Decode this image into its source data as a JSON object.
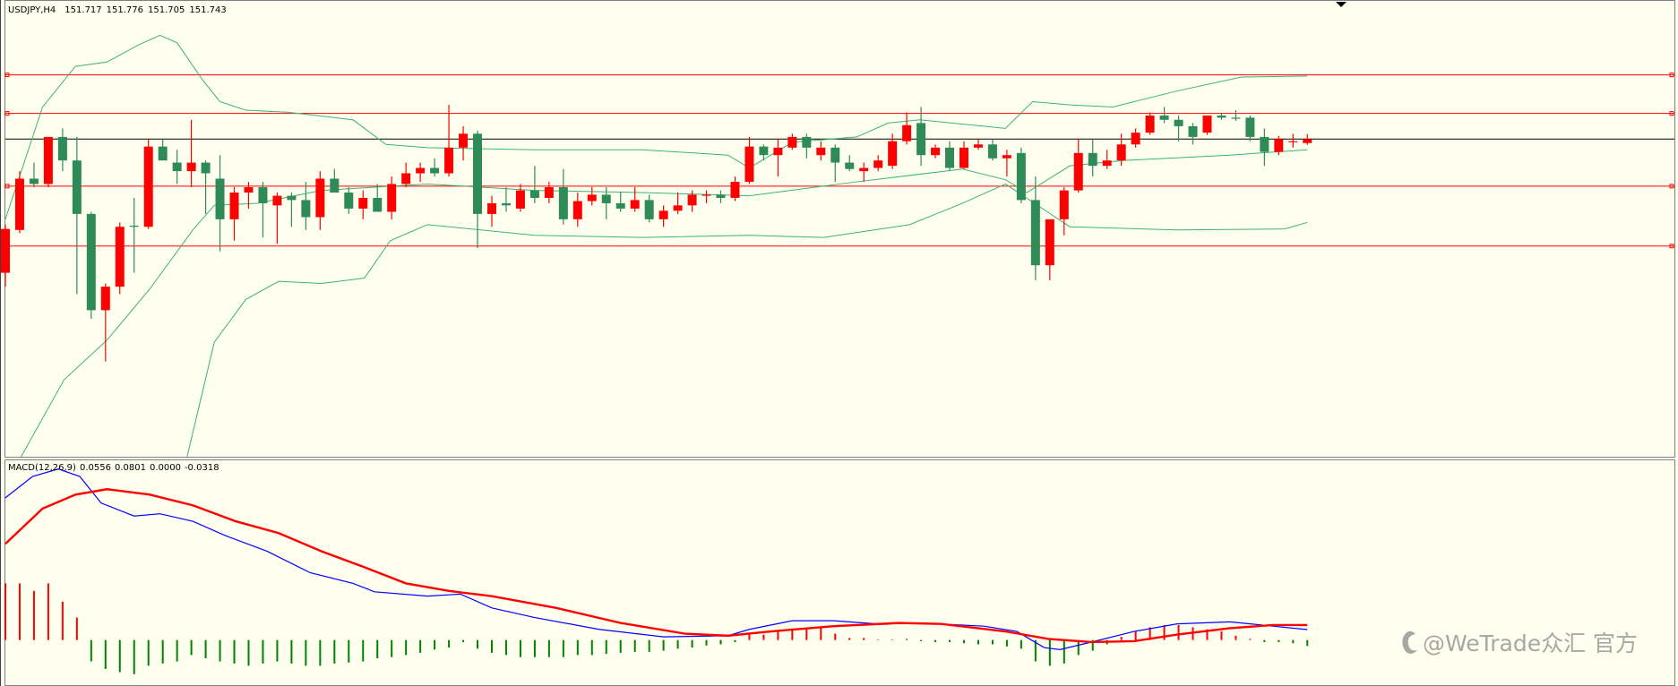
{
  "chart_data": [
    {
      "type": "candlestick",
      "title": "USDJPY,H4",
      "categories": [
        null,
        null,
        null,
        null,
        null,
        null,
        null,
        null,
        null,
        null,
        null,
        null,
        null,
        null,
        null,
        null,
        null,
        null,
        null,
        null,
        null,
        null,
        null,
        null,
        null,
        null,
        null,
        null,
        null,
        null,
        null,
        null,
        null,
        null,
        null,
        null,
        null,
        null,
        null,
        null,
        null,
        null,
        null,
        null,
        null,
        null,
        null,
        null,
        null,
        null,
        null,
        null,
        null,
        null,
        null,
        null,
        null,
        null,
        null,
        null,
        null,
        null,
        null,
        null,
        null,
        null,
        null,
        null,
        null,
        null,
        null,
        null,
        null,
        null,
        null,
        null,
        null,
        null,
        null,
        null,
        null,
        null,
        null,
        null,
        null,
        null,
        null,
        null,
        null,
        null,
        null,
        null
      ],
      "open": [
        150.868,
        151.148,
        151.484,
        151.449,
        151.757,
        151.603,
        151.253,
        150.623,
        150.777,
        151.176,
        151.169,
        151.694,
        151.589,
        151.533,
        151.589,
        151.484,
        151.218,
        151.393,
        151.428,
        151.309,
        151.372,
        151.344,
        151.232,
        151.484,
        151.393,
        151.288,
        151.358,
        151.267,
        151.449,
        151.519,
        151.554,
        151.519,
        151.687,
        151.778,
        151.253,
        151.323,
        151.288,
        151.407,
        151.358,
        151.428,
        151.218,
        151.337,
        151.379,
        151.323,
        151.288,
        151.344,
        151.218,
        151.274,
        151.309,
        151.372,
        151.379,
        151.358,
        151.463,
        151.694,
        151.638,
        151.687,
        151.757,
        151.638,
        151.687,
        151.589,
        151.533,
        151.554,
        151.568,
        151.729,
        151.848,
        151.638,
        151.687,
        151.554,
        151.687,
        151.708,
        151.617,
        151.652,
        151.344,
        150.917,
        151.218,
        151.407,
        151.652,
        151.568,
        151.603,
        151.708,
        151.785,
        151.897,
        151.869,
        151.827,
        151.785,
        151.897,
        151.883,
        151.883,
        151.757,
        151.659,
        151.722,
        151.717
      ],
      "high": [
        151.183,
        151.533,
        151.589,
        151.757,
        151.813,
        151.757,
        151.267,
        150.798,
        151.197,
        151.358,
        151.743,
        151.743,
        151.673,
        151.869,
        151.603,
        151.638,
        151.428,
        151.463,
        151.463,
        151.393,
        151.393,
        151.463,
        151.533,
        151.547,
        151.428,
        151.407,
        151.449,
        151.498,
        151.589,
        151.589,
        151.617,
        151.967,
        151.827,
        151.799,
        151.372,
        151.428,
        151.449,
        151.568,
        151.463,
        151.547,
        151.393,
        151.428,
        151.428,
        151.393,
        151.428,
        151.379,
        151.309,
        151.393,
        151.407,
        151.407,
        151.407,
        151.498,
        151.757,
        151.708,
        151.743,
        151.778,
        151.778,
        151.729,
        151.708,
        151.638,
        151.589,
        151.638,
        151.778,
        151.918,
        151.953,
        151.708,
        151.729,
        151.729,
        151.743,
        151.743,
        151.673,
        151.687,
        151.498,
        151.218,
        151.428,
        151.743,
        151.743,
        151.673,
        151.778,
        151.813,
        151.918,
        151.953,
        151.897,
        151.848,
        151.897,
        151.911,
        151.932,
        151.897,
        151.813,
        151.764,
        151.778,
        151.776
      ],
      "low": [
        150.777,
        151.127,
        151.428,
        151.428,
        151.533,
        150.728,
        150.567,
        150.287,
        150.728,
        150.868,
        151.155,
        151.603,
        151.449,
        151.428,
        151.253,
        151.008,
        151.078,
        151.288,
        151.099,
        151.057,
        151.169,
        151.148,
        151.148,
        151.393,
        151.253,
        151.218,
        151.267,
        151.218,
        151.428,
        151.463,
        151.498,
        151.498,
        151.603,
        151.029,
        151.169,
        151.267,
        151.267,
        151.323,
        151.323,
        151.183,
        151.169,
        151.309,
        151.218,
        151.267,
        151.267,
        151.197,
        151.169,
        151.253,
        151.267,
        151.323,
        151.323,
        151.337,
        151.449,
        151.603,
        151.498,
        151.673,
        151.617,
        151.603,
        151.463,
        151.533,
        151.463,
        151.533,
        151.547,
        151.708,
        151.568,
        151.617,
        151.533,
        151.547,
        151.673,
        151.603,
        151.498,
        151.323,
        150.819,
        150.819,
        151.113,
        151.393,
        151.498,
        151.547,
        151.568,
        151.687,
        151.771,
        151.848,
        151.729,
        151.708,
        151.771,
        151.869,
        151.862,
        151.729,
        151.568,
        151.638,
        151.687,
        151.705
      ],
      "close": [
        151.155,
        151.484,
        151.449,
        151.757,
        151.603,
        151.253,
        150.623,
        150.777,
        151.169,
        151.169,
        151.694,
        151.603,
        151.533,
        151.589,
        151.519,
        151.218,
        151.393,
        151.428,
        151.323,
        151.372,
        151.344,
        151.232,
        151.484,
        151.393,
        151.288,
        151.358,
        151.267,
        151.449,
        151.519,
        151.554,
        151.519,
        151.687,
        151.778,
        151.253,
        151.323,
        151.309,
        151.407,
        151.358,
        151.428,
        151.218,
        151.337,
        151.379,
        151.323,
        151.288,
        151.344,
        151.218,
        151.274,
        151.309,
        151.379,
        151.379,
        151.358,
        151.463,
        151.694,
        151.638,
        151.687,
        151.757,
        151.687,
        151.687,
        151.589,
        151.547,
        151.554,
        151.603,
        151.729,
        151.834,
        151.638,
        151.687,
        151.554,
        151.687,
        151.708,
        151.617,
        151.638,
        151.344,
        150.917,
        151.218,
        151.407,
        151.652,
        151.568,
        151.603,
        151.708,
        151.785,
        151.897,
        151.869,
        151.827,
        151.757,
        151.897,
        151.883,
        151.883,
        151.757,
        151.659,
        151.743,
        151.729,
        151.743
      ],
      "up_color": "#ff0000",
      "down_color": "#2e8b57",
      "ylim": [
        149.664,
        152.618
      ],
      "levels": [
        152.163,
        151.911,
        151.435,
        151.043
      ],
      "level_color": "#ff0000",
      "bid_line_color": "#000000",
      "bands": [
        {
          "color": "#3cb371",
          "x": [
            0,
            2.6,
            4.9,
            7.1,
            9.3,
            10.8,
            12.0,
            13.8,
            15.0,
            16.8,
            19.8,
            24.3,
            26.6,
            29.5,
            37.0,
            44.5,
            50.5,
            52.0,
            55.0,
            59.5,
            61.7,
            63.9,
            69.9,
            71.8,
            74.4,
            77.4,
            81.9,
            86.4,
            91.0
          ],
          "values": [
            151.218,
            151.953,
            152.219,
            152.247,
            152.359,
            152.422,
            152.373,
            152.128,
            151.988,
            151.932,
            151.918,
            151.869,
            151.708,
            151.687,
            151.673,
            151.673,
            151.638,
            151.554,
            151.722,
            151.757,
            151.848,
            151.869,
            151.813,
            151.988,
            151.967,
            151.953,
            152.058,
            152.149,
            152.156
          ]
        },
        {
          "color": "#3cb371",
          "x": [
            1.1,
            4.1,
            7.1,
            10.1,
            13.1,
            14.6,
            17.6,
            22.1,
            29.5,
            37.0,
            44.5,
            52.0,
            59.5,
            66.9,
            69.9,
            71.4,
            74.4,
            78.2,
            85.6,
            91.0
          ],
          "values": [
            149.664,
            150.168,
            150.427,
            150.763,
            151.148,
            151.309,
            151.323,
            151.407,
            151.449,
            151.407,
            151.393,
            151.372,
            151.463,
            151.547,
            151.477,
            151.393,
            151.568,
            151.603,
            151.638,
            151.673
          ]
        },
        {
          "color": "#3cb371",
          "x": [
            12.7,
            14.6,
            16.8,
            19.1,
            22.1,
            25.1,
            26.9,
            29.5,
            37.0,
            44.5,
            52.0,
            57.2,
            63.2,
            66.9,
            69.9,
            74.4,
            81.9,
            89.4,
            91.0
          ],
          "values": [
            149.664,
            150.413,
            150.693,
            150.812,
            150.798,
            150.833,
            151.078,
            151.183,
            151.113,
            151.099,
            151.113,
            151.099,
            151.183,
            151.323,
            151.449,
            151.169,
            151.148,
            151.155,
            151.197
          ]
        }
      ]
    },
    {
      "type": "macd",
      "title": "MACD(12,26,9)",
      "ylim": [
        -0.245,
        0.958
      ],
      "series": [
        {
          "color": "#0000ff",
          "x": [
            0,
            1.9,
            3.7,
            5.2,
            6.7,
            9.0,
            10.8,
            13.1,
            15.3,
            18.3,
            21.3,
            24.3,
            25.8,
            29.5,
            31.8,
            34.0,
            37.0,
            41.5,
            46.0,
            50.5,
            52.0,
            55.0,
            57.9,
            60.9,
            63.9,
            68.4,
            70.7,
            72.6,
            73.7,
            75.9,
            78.9,
            81.9,
            85.6,
            88.6,
            91.0
          ],
          "values": [
            0.758,
            0.872,
            0.912,
            0.872,
            0.73,
            0.661,
            0.673,
            0.633,
            0.559,
            0.473,
            0.359,
            0.302,
            0.257,
            0.234,
            0.245,
            0.171,
            0.12,
            0.057,
            0.017,
            0.023,
            0.057,
            0.103,
            0.103,
            0.086,
            0.091,
            0.074,
            0.046,
            -0.04,
            -0.051,
            -0.011,
            0.046,
            0.086,
            0.097,
            0.074,
            0.0556
          ]
        },
        {
          "color": "#ff0000",
          "x": [
            0,
            2.6,
            4.9,
            7.1,
            10.1,
            13.1,
            16.1,
            19.1,
            22.1,
            25.1,
            28.0,
            31.0,
            34.0,
            38.5,
            43.0,
            47.5,
            50.5,
            53.5,
            57.9,
            62.5,
            65.4,
            69.9,
            72.9,
            75.9,
            78.9,
            81.9,
            85.6,
            88.6,
            91.0
          ],
          "values": [
            0.513,
            0.701,
            0.775,
            0.804,
            0.775,
            0.718,
            0.633,
            0.57,
            0.473,
            0.388,
            0.302,
            0.262,
            0.234,
            0.171,
            0.091,
            0.034,
            0.023,
            0.046,
            0.074,
            0.091,
            0.086,
            0.046,
            0.006,
            -0.011,
            -0.006,
            0.029,
            0.063,
            0.08,
            0.0801
          ]
        }
      ],
      "header_buffer": {
        "value": 0,
        "label": "0.0000"
      },
      "histogram": {
        "up_color": "#ff0000",
        "down_color": "#008000",
        "values": [
          0.302,
          0.302,
          0.262,
          0.302,
          0.205,
          0.12,
          -0.114,
          -0.154,
          -0.171,
          -0.182,
          -0.137,
          -0.125,
          -0.114,
          -0.08,
          -0.097,
          -0.114,
          -0.125,
          -0.137,
          -0.125,
          -0.114,
          -0.125,
          -0.137,
          -0.137,
          -0.125,
          -0.12,
          -0.114,
          -0.097,
          -0.091,
          -0.08,
          -0.068,
          -0.051,
          -0.04,
          -0.011,
          -0.046,
          -0.068,
          -0.08,
          -0.091,
          -0.091,
          -0.091,
          -0.091,
          -0.08,
          -0.08,
          -0.074,
          -0.068,
          -0.063,
          -0.063,
          -0.057,
          -0.046,
          -0.04,
          -0.029,
          -0.023,
          -0.011,
          0.029,
          0.029,
          0.046,
          0.057,
          0.057,
          0.068,
          0.034,
          0.011,
          0.011,
          0.003,
          0.003,
          0.006,
          -0.006,
          -0.011,
          -0.011,
          -0.017,
          -0.023,
          -0.023,
          -0.034,
          -0.046,
          -0.114,
          -0.137,
          -0.125,
          -0.08,
          -0.057,
          -0.023,
          0.017,
          0.046,
          0.068,
          0.08,
          0.08,
          0.068,
          0.057,
          0.046,
          0.023,
          0.006,
          -0.011,
          -0.011,
          -0.017,
          -0.0318
        ]
      }
    }
  ],
  "watermark": "@WeTrade众汇 官方"
}
